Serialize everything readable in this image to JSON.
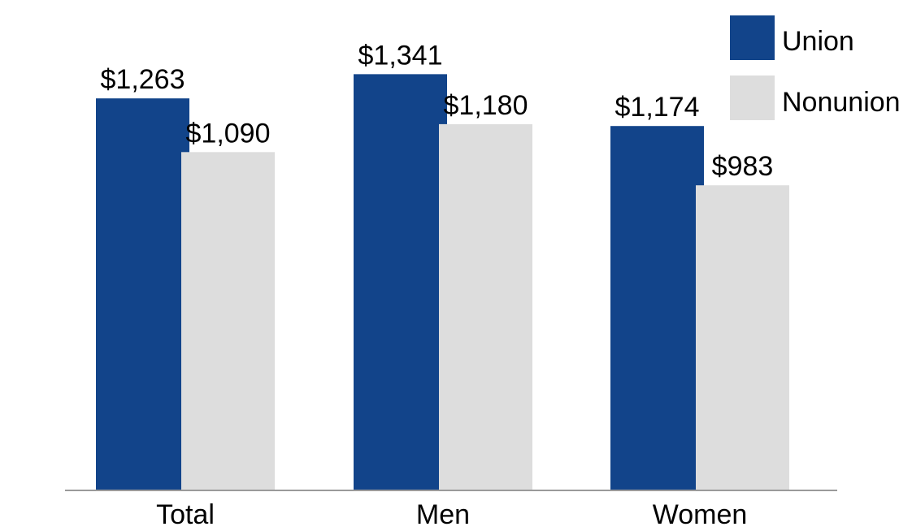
{
  "colors": {
    "union": "#12448a",
    "nonunion": "#dddddd",
    "axis": "#9a9a9a",
    "background": "#ffffff"
  },
  "chart_data": {
    "type": "bar",
    "categories": [
      "Total",
      "Men",
      "Women"
    ],
    "series": [
      {
        "name": "Union",
        "values": [
          1263,
          1341,
          1174
        ],
        "labels": [
          "$1,263",
          "$1,341",
          "$1,174"
        ]
      },
      {
        "name": "Nonunion",
        "values": [
          1090,
          1180,
          983
        ],
        "labels": [
          "$1,090",
          "$1,180",
          "$983"
        ]
      }
    ],
    "title": "",
    "xlabel": "",
    "ylabel": "",
    "ylim": [
      0,
      1580
    ],
    "grid": false,
    "legend": "top-right"
  }
}
